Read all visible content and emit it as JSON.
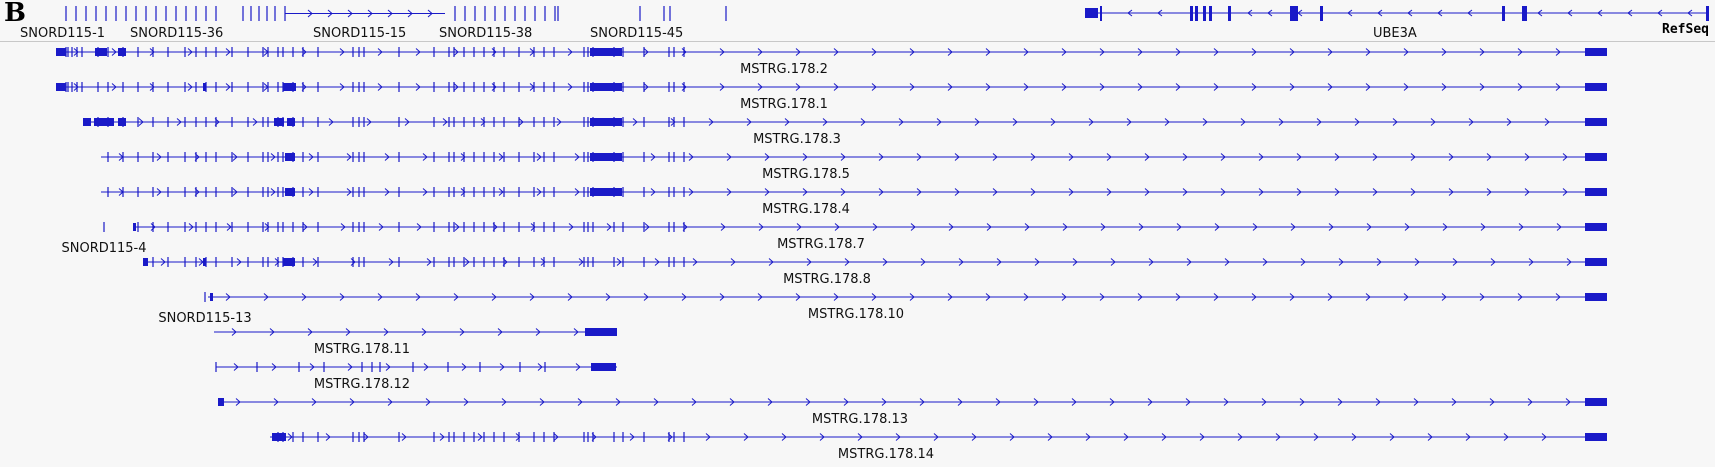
{
  "panel_label": "B",
  "track_label": "RefSeq",
  "colors": {
    "feature": "#1a1ac8",
    "background": "#f7f7f7",
    "text": "#111111"
  },
  "refseq_labels": [
    "SNORD115-1",
    "SNORD115-36",
    "SNORD115-15",
    "SNORD115-38",
    "SNORD115-45",
    "UBE3A"
  ],
  "transcripts": [
    {
      "name": "MSTRG.178.2",
      "strand": "+"
    },
    {
      "name": "MSTRG.178.1",
      "strand": "+"
    },
    {
      "name": "MSTRG.178.3",
      "strand": "+"
    },
    {
      "name": "MSTRG.178.5",
      "strand": "+"
    },
    {
      "name": "MSTRG.178.4",
      "strand": "+"
    },
    {
      "name": "SNORD115-4",
      "strand": "+"
    },
    {
      "name": "MSTRG.178.7",
      "strand": "+"
    },
    {
      "name": "MSTRG.178.8",
      "strand": "+"
    },
    {
      "name": "SNORD115-13",
      "strand": "+"
    },
    {
      "name": "MSTRG.178.10",
      "strand": "+"
    },
    {
      "name": "MSTRG.178.11",
      "strand": "+"
    },
    {
      "name": "MSTRG.178.12",
      "strand": "+"
    },
    {
      "name": "MSTRG.178.13",
      "strand": "+"
    },
    {
      "name": "MSTRG.178.14",
      "strand": "+"
    }
  ]
}
